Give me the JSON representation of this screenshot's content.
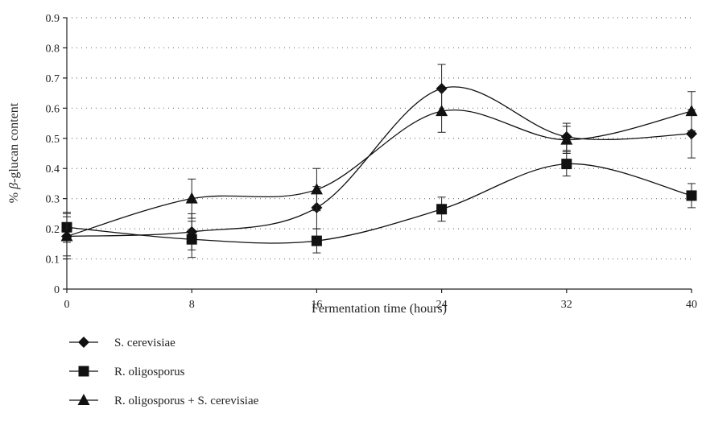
{
  "chart_data": {
    "type": "line",
    "ylabel_prefix": "% ",
    "ylabel_italic": "β",
    "ylabel_suffix": "-glucan content",
    "xlabel": "Fermentation time (hours)",
    "x": [
      0,
      8,
      16,
      24,
      32,
      40
    ],
    "xticks": [
      "0",
      "8",
      "16",
      "24",
      "32",
      "40"
    ],
    "xlim": [
      0,
      40
    ],
    "ylim": [
      0,
      0.9
    ],
    "yticks": [
      "0",
      "0.1",
      "0.2",
      "0.3",
      "0.4",
      "0.5",
      "0.6",
      "0.7",
      "0.8",
      "0.9"
    ],
    "grid": "horizontal dotted",
    "legend_position": "bottom-left",
    "series": [
      {
        "name": "S. cerevisiae",
        "marker": "diamond",
        "values": [
          0.175,
          0.19,
          0.27,
          0.665,
          0.505,
          0.515
        ],
        "errors": [
          0.065,
          0.06,
          0.07,
          0.08,
          0.045,
          0.08
        ]
      },
      {
        "name": "R. oligosporus",
        "marker": "square",
        "values": [
          0.205,
          0.165,
          0.16,
          0.265,
          0.415,
          0.31
        ],
        "errors": [
          0.05,
          0.06,
          0.04,
          0.04,
          0.04,
          0.04
        ]
      },
      {
        "name": "R. oligosporus + S. cerevisiae",
        "marker": "triangle",
        "values": [
          0.175,
          0.3,
          0.33,
          0.59,
          0.495,
          0.59
        ],
        "errors": [
          0.075,
          0.065,
          0.07,
          0.07,
          0.045,
          0.065
        ]
      }
    ]
  }
}
